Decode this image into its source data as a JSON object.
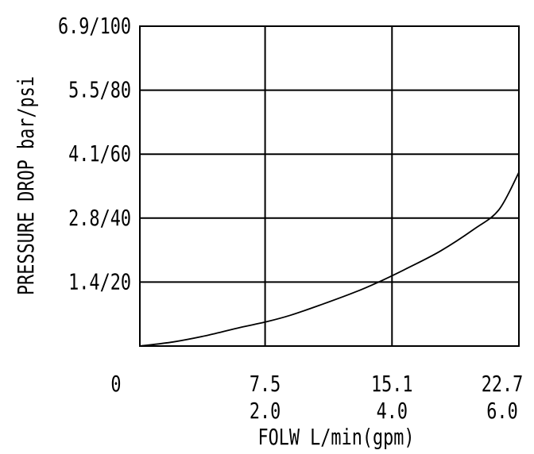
{
  "chart_data": {
    "type": "line",
    "xlabel": "FOLW L/min(gpm)",
    "ylabel": "PRESSURE DROP  bar/psi",
    "x_ticks": [
      {
        "value": 0,
        "line1": "0",
        "line2": ""
      },
      {
        "value": 7.5,
        "line1": "7.5",
        "line2": "2.0"
      },
      {
        "value": 15.1,
        "line1": "15.1",
        "line2": "4.0"
      },
      {
        "value": 22.7,
        "line1": "22.7",
        "line2": "6.0"
      }
    ],
    "y_ticks": [
      {
        "value": 20,
        "label": "1.4/20"
      },
      {
        "value": 40,
        "label": "2.8/40"
      },
      {
        "value": 60,
        "label": "4.1/60"
      },
      {
        "value": 80,
        "label": "5.5/80"
      },
      {
        "value": 100,
        "label": "6.9/100"
      }
    ],
    "xlim": [
      0,
      22.7
    ],
    "ylim": [
      0,
      100
    ],
    "grid": true,
    "series": [
      {
        "x": [
          0,
          2,
          4,
          6,
          7.5,
          9,
          11,
          13,
          14.5,
          16,
          18,
          20,
          21.5,
          22.7
        ],
        "y": [
          0,
          1.3,
          3.3,
          5.8,
          7.5,
          9.6,
          13.2,
          17.1,
          20.5,
          24.3,
          29.7,
          36.5,
          42.6,
          54.3
        ]
      }
    ]
  }
}
